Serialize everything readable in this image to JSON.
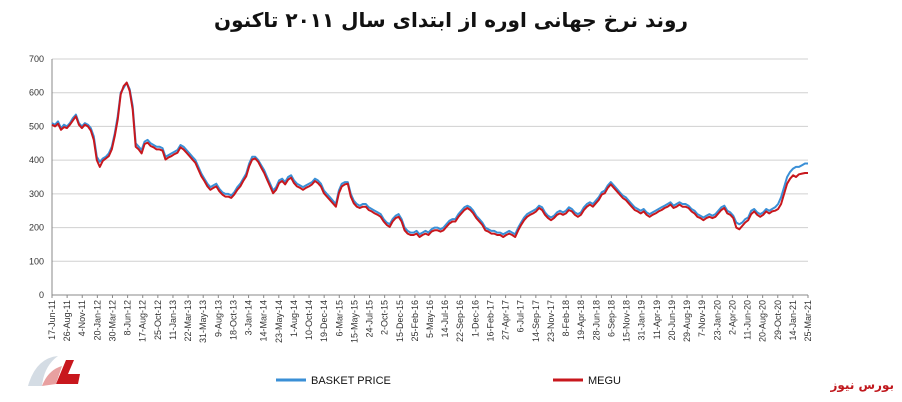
{
  "title": "روند نرخ جهانی اوره از ابتدای سال ۲۰۱۱ تاکنون",
  "source": "بورس نیوز",
  "colors": {
    "basket": "#3a8fd6",
    "megu": "#c8171d",
    "grid": "#d0d0d0",
    "axis": "#888888"
  },
  "chart_data": {
    "type": "line",
    "title": "روند نرخ جهانی اوره از ابتدای سال ۲۰۱۱ تاکنون",
    "ylim": [
      0,
      700
    ],
    "yticks": [
      0,
      100,
      200,
      300,
      400,
      500,
      600,
      700
    ],
    "grid": "horizontal",
    "legend": "bottom",
    "x_tick_labels": [
      "17-Jun-11",
      "26-Aug-11",
      "4-Nov-11",
      "20-Jan-12",
      "30-Mar-12",
      "8-Jun-12",
      "17-Aug-12",
      "25-Oct-12",
      "11-Jan-13",
      "22-Mar-13",
      "31-May-13",
      "9-Aug-13",
      "18-Oct-13",
      "3-Jan-14",
      "14-Mar-14",
      "23-May-14",
      "1-Aug-14",
      "10-Oct-14",
      "19-Dec-14",
      "6-Mar-15",
      "15-May-15",
      "24-Jul-15",
      "2-Oct-15",
      "15-Dec-15",
      "25-Feb-16",
      "5-May-16",
      "14-Jul-16",
      "22-Sep-16",
      "1-Dec-16",
      "16-Feb-17",
      "27-Apr-17",
      "6-Jul-17",
      "14-Sep-17",
      "23-Nov-17",
      "8-Feb-18",
      "19-Apr-18",
      "28-Jun-18",
      "6-Sep-18",
      "15-Nov-18",
      "31-Jan-19",
      "11-Apr-19",
      "20-Jun-19",
      "29-Aug-19",
      "7-Nov-19",
      "23-Jan-20",
      "2-Apr-20",
      "11-Jun-20",
      "20-Aug-20",
      "29-Oct-20",
      "14-Jan-21",
      "25-Mar-21"
    ],
    "series": [
      {
        "name": "BASKET PRICE",
        "color": "#3a8fd6",
        "values": [
          510,
          505,
          515,
          495,
          505,
          500,
          510,
          525,
          535,
          510,
          500,
          510,
          505,
          495,
          470,
          410,
          395,
          405,
          410,
          420,
          440,
          480,
          530,
          600,
          615,
          630,
          610,
          560,
          450,
          440,
          430,
          455,
          460,
          450,
          445,
          440,
          440,
          435,
          410,
          415,
          420,
          425,
          430,
          445,
          440,
          430,
          420,
          410,
          400,
          380,
          360,
          345,
          330,
          320,
          325,
          330,
          315,
          305,
          300,
          300,
          295,
          305,
          320,
          330,
          345,
          360,
          390,
          410,
          410,
          400,
          385,
          370,
          350,
          330,
          310,
          320,
          340,
          345,
          335,
          350,
          355,
          340,
          330,
          325,
          320,
          325,
          330,
          335,
          345,
          340,
          330,
          310,
          300,
          290,
          280,
          270,
          310,
          330,
          335,
          335,
          300,
          280,
          270,
          265,
          270,
          270,
          260,
          255,
          250,
          245,
          240,
          225,
          215,
          210,
          225,
          235,
          240,
          225,
          200,
          190,
          185,
          185,
          190,
          180,
          185,
          190,
          185,
          195,
          200,
          200,
          195,
          200,
          210,
          220,
          225,
          225,
          240,
          250,
          260,
          265,
          260,
          250,
          235,
          225,
          215,
          200,
          195,
          190,
          190,
          185,
          185,
          180,
          185,
          190,
          185,
          180,
          200,
          215,
          230,
          240,
          245,
          250,
          255,
          265,
          260,
          245,
          235,
          230,
          235,
          245,
          250,
          245,
          250,
          260,
          255,
          245,
          240,
          245,
          260,
          270,
          275,
          270,
          280,
          290,
          305,
          310,
          325,
          335,
          325,
          315,
          305,
          295,
          290,
          280,
          270,
          260,
          255,
          250,
          255,
          245,
          240,
          245,
          250,
          255,
          260,
          265,
          270,
          275,
          265,
          270,
          275,
          270,
          270,
          265,
          255,
          250,
          240,
          235,
          230,
          235,
          240,
          235,
          240,
          250,
          260,
          265,
          250,
          245,
          235,
          215,
          210,
          215,
          225,
          230,
          250,
          255,
          245,
          240,
          245,
          255,
          250,
          255,
          260,
          270,
          290,
          320,
          350,
          365,
          375,
          380,
          380,
          385,
          390,
          390
        ]
      },
      {
        "name": "MEGU",
        "color": "#c8171d",
        "values": [
          505,
          500,
          508,
          490,
          498,
          495,
          505,
          518,
          530,
          505,
          495,
          505,
          500,
          488,
          460,
          400,
          380,
          398,
          405,
          412,
          432,
          472,
          520,
          595,
          620,
          630,
          605,
          550,
          440,
          432,
          420,
          448,
          452,
          442,
          438,
          432,
          432,
          428,
          402,
          408,
          412,
          418,
          422,
          438,
          432,
          422,
          412,
          402,
          392,
          372,
          352,
          338,
          322,
          312,
          318,
          322,
          308,
          298,
          292,
          292,
          288,
          298,
          312,
          322,
          338,
          352,
          382,
          402,
          405,
          395,
          378,
          362,
          342,
          322,
          302,
          312,
          332,
          338,
          328,
          342,
          348,
          332,
          322,
          318,
          312,
          318,
          322,
          328,
          338,
          332,
          322,
          302,
          292,
          282,
          272,
          262,
          302,
          322,
          328,
          330,
          292,
          272,
          262,
          258,
          262,
          262,
          252,
          248,
          242,
          238,
          232,
          218,
          208,
          202,
          218,
          228,
          232,
          218,
          192,
          182,
          178,
          178,
          182,
          172,
          178,
          182,
          178,
          188,
          192,
          192,
          188,
          192,
          202,
          212,
          218,
          218,
          232,
          242,
          252,
          258,
          252,
          242,
          228,
          218,
          208,
          192,
          188,
          182,
          182,
          178,
          178,
          172,
          178,
          182,
          178,
          172,
          192,
          208,
          222,
          232,
          238,
          242,
          248,
          258,
          252,
          238,
          228,
          222,
          228,
          238,
          242,
          238,
          242,
          252,
          248,
          238,
          232,
          238,
          252,
          262,
          268,
          262,
          272,
          282,
          298,
          302,
          318,
          328,
          318,
          308,
          298,
          288,
          282,
          272,
          262,
          252,
          248,
          242,
          248,
          238,
          232,
          238,
          242,
          248,
          252,
          258,
          262,
          268,
          258,
          262,
          268,
          262,
          262,
          258,
          248,
          242,
          232,
          228,
          222,
          228,
          232,
          228,
          232,
          242,
          252,
          258,
          242,
          238,
          228,
          200,
          195,
          205,
          215,
          222,
          240,
          248,
          238,
          232,
          238,
          248,
          242,
          248,
          250,
          255,
          270,
          300,
          330,
          345,
          355,
          350,
          358,
          360,
          362,
          362
        ]
      }
    ]
  }
}
